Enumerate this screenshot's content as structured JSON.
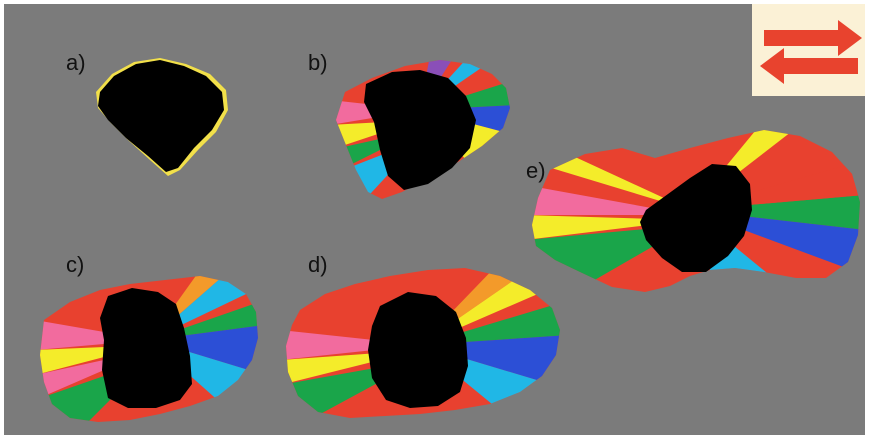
{
  "figure": {
    "background_color": "#7b7b7b",
    "border_color": "#ffffff",
    "seed_color": "#000000",
    "grain_palette": [
      "#e8412f",
      "#f26b9e",
      "#f4ec2a",
      "#1aa54a",
      "#2c4fd6",
      "#20b7e6",
      "#8a4fb8",
      "#f39a2a",
      "#e73d7d",
      "#b5e61d"
    ]
  },
  "panels": [
    {
      "label": "a)"
    },
    {
      "label": "b)"
    },
    {
      "label": "c)"
    },
    {
      "label": "d)"
    },
    {
      "label": "e)"
    }
  ],
  "direction_indicator": {
    "icon": "bidirectional-arrows-icon",
    "arrow_color": "#e8432e",
    "background_color": "#fbf1d6"
  }
}
